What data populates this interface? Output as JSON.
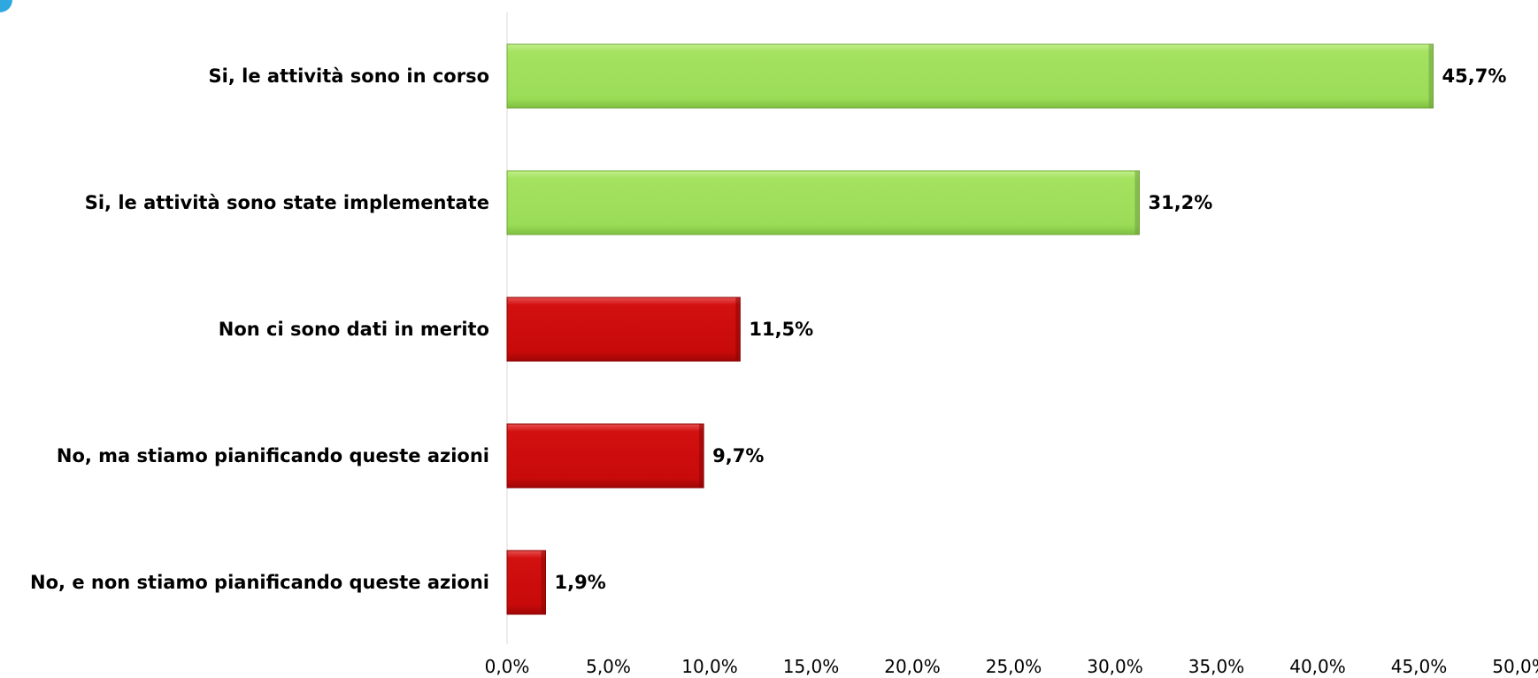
{
  "chart_data": {
    "type": "bar",
    "orientation": "horizontal",
    "categories": [
      "Si, le attività sono in corso",
      "Si, le attività sono state implementate",
      "Non ci sono dati in merito",
      "No, ma stiamo pianificando queste azioni",
      "No, e non stiamo pianificando queste azioni"
    ],
    "values": [
      45.7,
      31.2,
      11.5,
      9.7,
      1.9
    ],
    "value_labels": [
      "45,7%",
      "31,2%",
      "11,5%",
      "9,7%",
      "1,9%"
    ],
    "bar_colors": [
      "#9fdf5b",
      "#9fdf5b",
      "#cc0a0a",
      "#cc0a0a",
      "#cc0a0a"
    ],
    "xlim": [
      0,
      50
    ],
    "x_ticks": [
      0,
      5,
      10,
      15,
      20,
      25,
      30,
      35,
      40,
      45,
      50
    ],
    "x_tick_labels": [
      "0,0%",
      "5,0%",
      "10,0%",
      "15,0%",
      "20,0%",
      "25,0%",
      "30,0%",
      "35,0%",
      "40,0%",
      "45,0%",
      "50,0%"
    ],
    "title": "",
    "xlabel": "",
    "ylabel": "",
    "grid": false,
    "legend": "none"
  },
  "colors": {
    "positive": "#9fdf5b",
    "negative": "#cc0a0a",
    "axis_line": "#d9d9d9",
    "corner_accent": "#2fa8e0"
  }
}
